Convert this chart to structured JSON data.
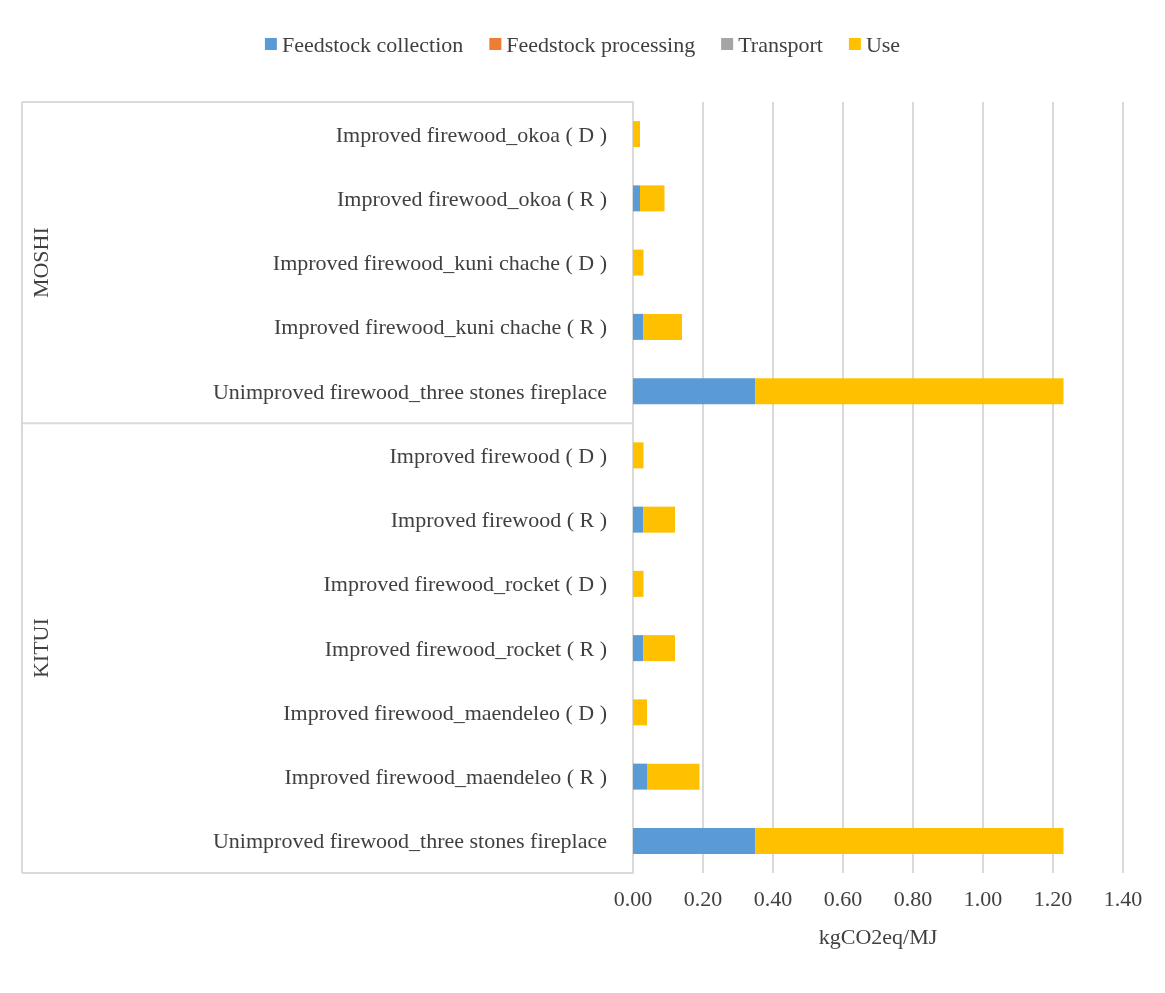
{
  "chart_data": {
    "type": "bar",
    "orientation": "horizontal",
    "stacked": true,
    "xlabel": "kgCO2eq/MJ",
    "categories": [
      "Improved firewood_okoa ( D )",
      "Improved firewood_okoa ( R )",
      "Improved firewood_kuni chache ( D )",
      "Improved firewood_kuni chache ( R )",
      "Unimproved firewood_three stones fireplace",
      "Improved firewood ( D )",
      "Improved firewood ( R )",
      "Improved firewood_rocket ( D )",
      "Improved firewood_rocket ( R )",
      "Improved firewood_maendeleo ( D )",
      "Improved firewood_maendeleo ( R )",
      "Unimproved firewood_three stones fireplace"
    ],
    "series": [
      {
        "name": "Feedstock collection",
        "color": "#5b9bd5",
        "values": [
          0,
          0.02,
          0,
          0.03,
          0.35,
          0,
          0.03,
          0,
          0.03,
          0,
          0.04,
          0.35
        ]
      },
      {
        "name": "Feedstock processing",
        "color": "#ed7d31",
        "values": [
          0,
          0,
          0,
          0,
          0,
          0,
          0,
          0,
          0,
          0,
          0,
          0
        ]
      },
      {
        "name": "Transport",
        "color": "#a5a5a5",
        "values": [
          0,
          0,
          0,
          0,
          0,
          0,
          0,
          0,
          0,
          0,
          0,
          0
        ]
      },
      {
        "name": "Use",
        "color": "#ffc000",
        "values": [
          0.02,
          0.07,
          0.03,
          0.11,
          0.88,
          0.03,
          0.09,
          0.03,
          0.09,
          0.04,
          0.15,
          0.88
        ]
      }
    ],
    "xlim": [
      0,
      1.4
    ],
    "xticks": [
      {
        "value": 0,
        "label": "0.00"
      },
      {
        "value": 0.2,
        "label": "0.20"
      },
      {
        "value": 0.4,
        "label": "0.40"
      },
      {
        "value": 0.6,
        "label": "0.60"
      },
      {
        "value": 0.8,
        "label": "0.80"
      },
      {
        "value": 1,
        "label": "1.00"
      },
      {
        "value": 1.2,
        "label": "1.20"
      },
      {
        "value": 1.4,
        "label": "1.40"
      }
    ],
    "grid": "x",
    "legend": "top",
    "annotations": [
      "MOSHI",
      "KITUI"
    ]
  }
}
